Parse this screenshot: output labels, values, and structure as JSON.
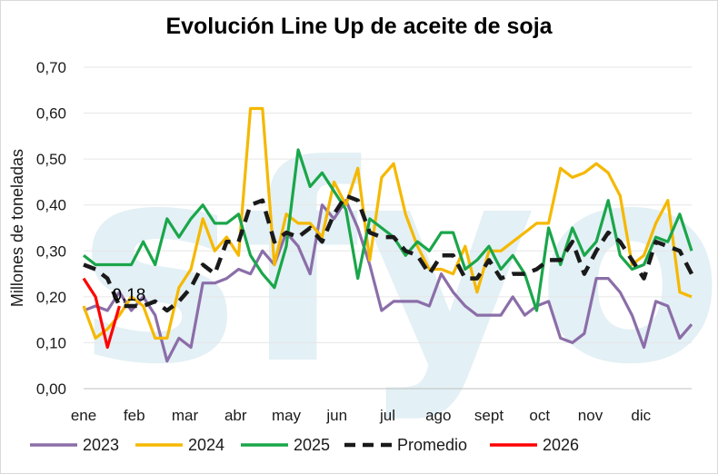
{
  "chart_data": {
    "type": "line",
    "title": "Evolución Line Up de aceite de soja",
    "xlabel": "",
    "ylabel": "Millones de toneladas",
    "ylim": [
      0,
      0.7
    ],
    "yticks": [
      "0,00",
      "0,10",
      "0,20",
      "0,30",
      "0,40",
      "0,50",
      "0,60",
      "0,70"
    ],
    "ytick_values": [
      0,
      0.1,
      0.2,
      0.3,
      0.4,
      0.5,
      0.6,
      0.7
    ],
    "xticks": [
      "ene",
      "feb",
      "mar",
      "abr",
      "may",
      "jun",
      "jul",
      "ago",
      "sept",
      "oct",
      "nov",
      "dic"
    ],
    "n_weeks": 52,
    "watermark": "sfyo",
    "annotation": {
      "text": "0,18",
      "series": "2026",
      "week": 3,
      "value": 0.18
    },
    "legend_position": "bottom",
    "series": [
      {
        "name": "2023",
        "color": "#8b6ea8",
        "dash": "solid",
        "values": [
          0.17,
          0.18,
          0.17,
          0.21,
          0.17,
          0.2,
          0.16,
          0.06,
          0.11,
          0.09,
          0.23,
          0.23,
          0.24,
          0.26,
          0.25,
          0.3,
          0.27,
          0.34,
          0.31,
          0.25,
          0.4,
          0.37,
          0.41,
          0.35,
          0.27,
          0.17,
          0.19,
          0.19,
          0.19,
          0.18,
          0.25,
          0.21,
          0.18,
          0.16,
          0.16,
          0.16,
          0.2,
          0.16,
          0.18,
          0.19,
          0.11,
          0.1,
          0.12,
          0.24,
          0.24,
          0.21,
          0.16,
          0.09,
          0.19,
          0.18,
          0.11,
          0.14
        ]
      },
      {
        "name": "2024",
        "color": "#f5b800",
        "dash": "solid",
        "values": [
          0.18,
          0.11,
          0.13,
          0.16,
          0.2,
          0.18,
          0.11,
          0.11,
          0.22,
          0.26,
          0.37,
          0.3,
          0.33,
          0.29,
          0.61,
          0.61,
          0.27,
          0.38,
          0.36,
          0.36,
          0.33,
          0.45,
          0.4,
          0.48,
          0.28,
          0.46,
          0.49,
          0.38,
          0.31,
          0.26,
          0.26,
          0.25,
          0.31,
          0.21,
          0.3,
          0.3,
          0.32,
          0.34,
          0.36,
          0.36,
          0.48,
          0.46,
          0.47,
          0.49,
          0.47,
          0.42,
          0.27,
          0.29,
          0.36,
          0.41,
          0.21,
          0.2
        ]
      },
      {
        "name": "2025",
        "color": "#1aa64a",
        "dash": "solid",
        "values": [
          0.29,
          0.27,
          0.27,
          0.27,
          0.27,
          0.32,
          0.27,
          0.37,
          0.33,
          0.37,
          0.4,
          0.36,
          0.36,
          0.38,
          0.29,
          0.25,
          0.22,
          0.31,
          0.52,
          0.44,
          0.47,
          0.43,
          0.39,
          0.24,
          0.37,
          0.35,
          0.33,
          0.29,
          0.32,
          0.3,
          0.34,
          0.34,
          0.26,
          0.28,
          0.31,
          0.26,
          0.29,
          0.25,
          0.17,
          0.35,
          0.27,
          0.35,
          0.29,
          0.32,
          0.41,
          0.29,
          0.26,
          0.27,
          0.33,
          0.32,
          0.38,
          0.3
        ]
      },
      {
        "name": "Promedio",
        "color": "#1a1a1a",
        "dash": "dashed",
        "values": [
          0.27,
          0.26,
          0.24,
          0.18,
          0.18,
          0.18,
          0.19,
          0.17,
          0.19,
          0.22,
          0.27,
          0.25,
          0.32,
          0.32,
          0.4,
          0.41,
          0.32,
          0.34,
          0.33,
          0.35,
          0.32,
          0.38,
          0.42,
          0.41,
          0.34,
          0.33,
          0.33,
          0.3,
          0.29,
          0.25,
          0.29,
          0.29,
          0.24,
          0.24,
          0.28,
          0.24,
          0.25,
          0.25,
          0.26,
          0.28,
          0.28,
          0.32,
          0.25,
          0.3,
          0.34,
          0.32,
          0.28,
          0.24,
          0.32,
          0.31,
          0.3,
          0.25
        ]
      },
      {
        "name": "2026",
        "color": "#ff0000",
        "dash": "solid",
        "values": [
          0.24,
          0.2,
          0.09,
          0.18
        ]
      }
    ]
  }
}
